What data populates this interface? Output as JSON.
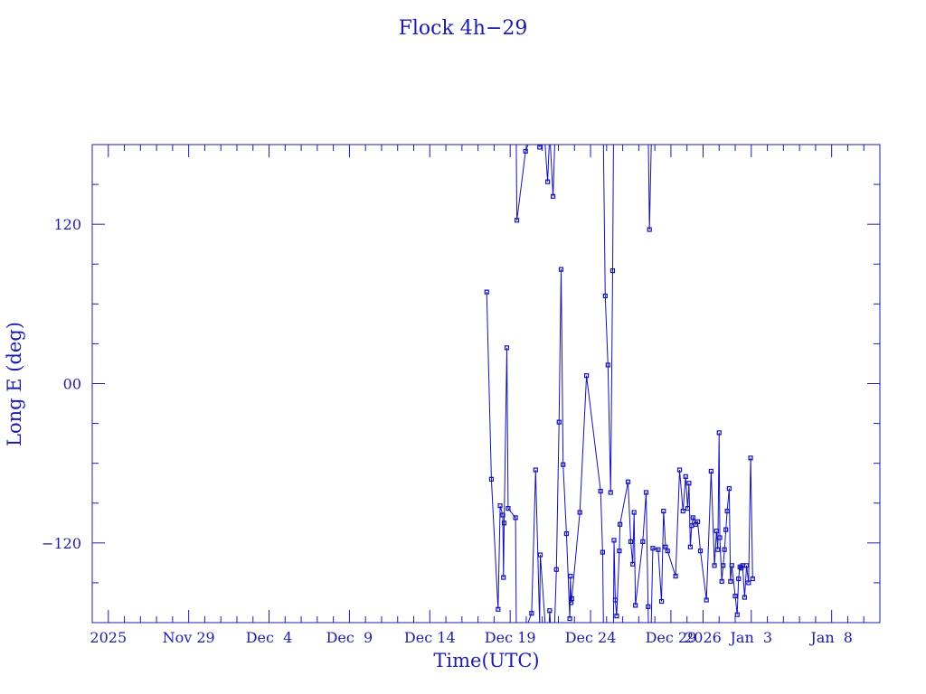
{
  "chart_data": {
    "type": "line",
    "title": "Flock 4h−29",
    "xlabel": "Time(UTC)",
    "ylabel": "Long E (deg)",
    "x_unit": "date",
    "xlim": [
      "2025-11-23T00:00",
      "2026-01-11T00:00"
    ],
    "ylim": [
      -180,
      180
    ],
    "y_ticks": [
      {
        "value": 120,
        "label": "120"
      },
      {
        "value": 0,
        "label": "00"
      },
      {
        "value": -120,
        "label": "−120"
      }
    ],
    "y_minor_step": 30,
    "x_ticks": [
      {
        "date": "2025-11-24",
        "label": "2025"
      },
      {
        "date": "2025-11-29",
        "label": "Nov 29"
      },
      {
        "date": "2025-12-04",
        "label": "Dec  4"
      },
      {
        "date": "2025-12-09",
        "label": "Dec  9"
      },
      {
        "date": "2025-12-14",
        "label": "Dec 14"
      },
      {
        "date": "2025-12-19",
        "label": "Dec 19"
      },
      {
        "date": "2025-12-24",
        "label": "Dec 24"
      },
      {
        "date": "2025-12-29",
        "label": "Dec 29"
      },
      {
        "date": "2025-12-31",
        "label": "2026"
      },
      {
        "date": "2026-01-03",
        "label": "Jan  3"
      },
      {
        "date": "2026-01-08",
        "label": "Jan  8"
      }
    ],
    "grid": false,
    "series": [
      {
        "x": [
          "2025-12-17T13:00",
          "2025-12-17T20:00",
          "2025-12-18T06:00",
          "2025-12-18T09:00",
          "2025-12-18T13:00",
          "2025-12-18T14:00",
          "2025-12-18T15:00",
          "2025-12-18T19:00",
          "2025-12-18T21:00",
          "2025-12-19T08:00",
          "2025-12-19T10:00",
          "2025-12-19T23:00",
          "2025-12-20T08:00",
          "2025-12-20T14:00",
          "2025-12-20T20:00",
          "2025-12-20T21:00",
          "2025-12-21T08:00",
          "2025-12-21T11:00",
          "2025-12-21T16:00",
          "2025-12-21T21:00",
          "2025-12-22T01:00",
          "2025-12-22T04:00",
          "2025-12-22T07:00",
          "2025-12-22T12:00",
          "2025-12-22T17:00",
          "2025-12-22T18:00",
          "2025-12-22T19:00",
          "2025-12-22T20:00",
          "2025-12-23T08:00",
          "2025-12-23T18:00",
          "2025-12-24T15:00",
          "2025-12-24T18:00",
          "2025-12-24T22:00",
          "2025-12-25T02:00",
          "2025-12-25T06:00",
          "2025-12-25T09:00",
          "2025-12-25T11:00",
          "2025-12-25T13:00",
          "2025-12-25T15:00",
          "2025-12-25T19:00",
          "2025-12-25T20:00",
          "2025-12-26T08:00",
          "2025-12-26T12:00",
          "2025-12-26T15:00",
          "2025-12-26T17:00",
          "2025-12-26T19:00",
          "2025-12-27T06:00",
          "2025-12-27T11:00",
          "2025-12-27T14:00",
          "2025-12-27T16:00",
          "2025-12-27T21:00",
          "2025-12-28T05:00",
          "2025-12-28T10:00",
          "2025-12-28T13:00",
          "2025-12-28T16:00",
          "2025-12-28T19:00",
          "2025-12-29T07:00",
          "2025-12-29T13:00",
          "2025-12-29T18:00",
          "2025-12-29T22:00",
          "2025-12-30T01:00",
          "2025-12-30T03:00",
          "2025-12-30T05:00",
          "2025-12-30T07:00",
          "2025-12-30T09:00",
          "2025-12-30T13:00",
          "2025-12-30T16:00",
          "2025-12-30T20:00",
          "2025-12-31T05:00",
          "2025-12-31T12:00",
          "2025-12-31T17:00",
          "2025-12-31T20:00",
          "2025-12-31T22:00",
          "2026-01-01T00:00",
          "2026-01-01T01:00",
          "2026-01-01T04:00",
          "2026-01-01T06:00",
          "2026-01-01T08:00",
          "2026-01-01T10:00",
          "2026-01-01T12:00",
          "2026-01-01T15:00",
          "2026-01-01T17:00",
          "2026-01-01T19:00",
          "2026-01-02T00:00",
          "2026-01-02T03:00",
          "2026-01-02T05:00",
          "2026-01-02T07:00",
          "2026-01-02T09:00",
          "2026-01-02T11:00",
          "2026-01-02T14:00",
          "2026-01-02T17:00",
          "2026-01-02T20:00",
          "2026-01-02T23:00",
          "2026-01-03T02:00"
        ],
        "y": [
          69,
          -72,
          -170,
          -92,
          -99,
          -146,
          -105,
          27,
          -94,
          -101,
          123,
          175,
          -173,
          -65,
          178,
          -129,
          152,
          -171,
          141,
          -140,
          -29,
          86,
          -61,
          -113,
          -177,
          -145,
          -165,
          -162,
          -97,
          6,
          -81,
          -127,
          66,
          14,
          -82,
          85,
          -118,
          -163,
          -175,
          -126,
          -106,
          -74,
          -119,
          -136,
          -97,
          -167,
          -119,
          -82,
          -168,
          116,
          -124,
          -125,
          -164,
          -96,
          -123,
          -126,
          -145,
          -65,
          -96,
          -70,
          -94,
          -75,
          -123,
          -107,
          -101,
          -106,
          -104,
          -126,
          -163,
          -66,
          -137,
          -111,
          -125,
          -37,
          -116,
          -149,
          -137,
          -125,
          -110,
          -96,
          -79,
          -149,
          -137,
          -160,
          -174,
          -147,
          -138,
          -139,
          -137,
          -161,
          -137,
          -150,
          -56,
          -147
        ]
      }
    ]
  }
}
